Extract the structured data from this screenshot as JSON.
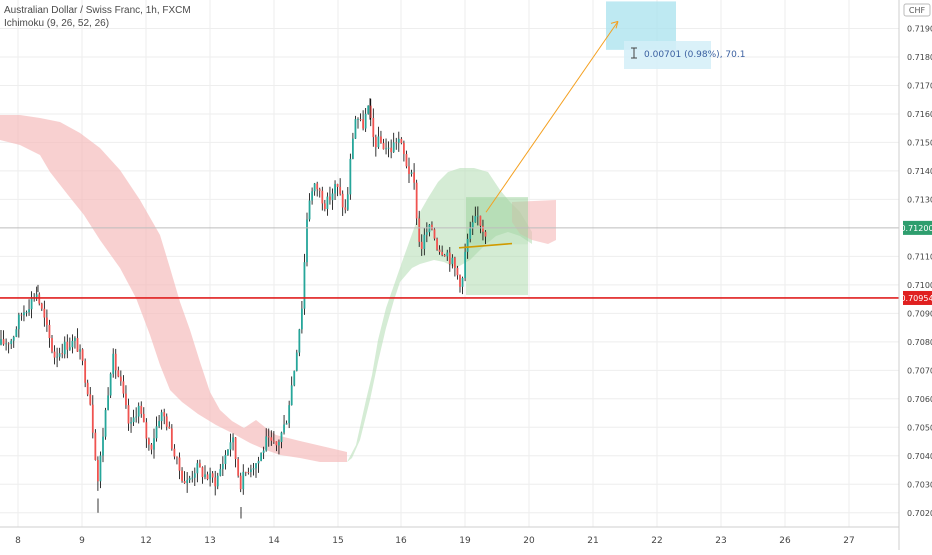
{
  "header": {
    "title": "Australian Dollar / Swiss Franc, 1h, FXCM",
    "indicator": "Ichimoku (9, 26, 52, 26)"
  },
  "colors": {
    "up": "#26a69a",
    "down": "#ef5350",
    "candle_up_body": "#ffffff",
    "candle": "#000000",
    "cloud_red": "#f5b7b7",
    "cloud_green": "#b9dfb9",
    "support": "#e02020",
    "arrow": "#f4a020",
    "target_box": "#a8e2ee",
    "long_box_green": "#9fd49f",
    "long_box_red": "#f7b5b5",
    "label_box": "#d4eef8"
  },
  "chart_data": {
    "type": "candlestick",
    "symbol": "Australian Dollar / Swiss Franc, 1h, FXCM",
    "currency_label": "CHF",
    "x_tick_labels": [
      "8",
      "9",
      "12",
      "13",
      "14",
      "15",
      "16",
      "19",
      "20",
      "21",
      "22",
      "23",
      "26",
      "27"
    ],
    "y_tick_labels": [
      "0.70200",
      "0.70300",
      "0.70400",
      "0.70500",
      "0.70600",
      "0.70700",
      "0.70800",
      "0.70900",
      "0.71000",
      "0.71100",
      "0.71300",
      "0.71400",
      "0.71500",
      "0.71600",
      "0.71700",
      "0.71800",
      "0.71900"
    ],
    "ylim": [
      0.7015,
      0.72
    ],
    "current_price": "0.71200",
    "support_price": "0.70954",
    "support_value": 0.70954,
    "current_value": 0.712,
    "measure_label": "0.00701 (0.98%), 70.1",
    "projection": {
      "from_value": 0.71255,
      "to_value": 0.71925
    },
    "long_position": {
      "entry": 0.71142,
      "stop": 0.70964,
      "target": 0.71308
    },
    "target_zone": {
      "low": 0.71825,
      "high": 0.71995
    },
    "path_key_points": [
      [
        0,
        0.7079
      ],
      [
        12,
        0.7081
      ],
      [
        20,
        0.7089
      ],
      [
        30,
        0.7094
      ],
      [
        36,
        0.7098
      ],
      [
        44,
        0.7088
      ],
      [
        54,
        0.7075
      ],
      [
        66,
        0.7079
      ],
      [
        76,
        0.708
      ],
      [
        82,
        0.7073
      ],
      [
        90,
        0.706
      ],
      [
        98,
        0.7031
      ],
      [
        104,
        0.7051
      ],
      [
        112,
        0.7075
      ],
      [
        120,
        0.7066
      ],
      [
        130,
        0.7049
      ],
      [
        138,
        0.7058
      ],
      [
        150,
        0.7042
      ],
      [
        160,
        0.7055
      ],
      [
        166,
        0.7053
      ],
      [
        176,
        0.7038
      ],
      [
        186,
        0.703
      ],
      [
        196,
        0.7036
      ],
      [
        206,
        0.7033
      ],
      [
        216,
        0.7031
      ],
      [
        226,
        0.7041
      ],
      [
        232,
        0.7047
      ],
      [
        240,
        0.703
      ],
      [
        248,
        0.7036
      ],
      [
        258,
        0.7038
      ],
      [
        266,
        0.7045
      ],
      [
        276,
        0.7043
      ],
      [
        286,
        0.7052
      ],
      [
        294,
        0.707
      ],
      [
        302,
        0.7093
      ],
      [
        308,
        0.713
      ],
      [
        316,
        0.7135
      ],
      [
        326,
        0.7128
      ],
      [
        336,
        0.7135
      ],
      [
        346,
        0.7125
      ],
      [
        352,
        0.715
      ],
      [
        356,
        0.716
      ],
      [
        362,
        0.7155
      ],
      [
        368,
        0.7162
      ],
      [
        374,
        0.715
      ],
      [
        380,
        0.715
      ],
      [
        390,
        0.7147
      ],
      [
        398,
        0.7152
      ],
      [
        406,
        0.7143
      ],
      [
        414,
        0.7135
      ],
      [
        420,
        0.7112
      ],
      [
        426,
        0.7118
      ],
      [
        432,
        0.712
      ],
      [
        438,
        0.7113
      ],
      [
        446,
        0.7112
      ],
      [
        452,
        0.7108
      ],
      [
        458,
        0.7103
      ],
      [
        462,
        0.71
      ],
      [
        466,
        0.7114
      ],
      [
        472,
        0.712
      ],
      [
        478,
        0.7124
      ],
      [
        484,
        0.7119
      ],
      [
        488,
        0.7119
      ]
    ]
  }
}
